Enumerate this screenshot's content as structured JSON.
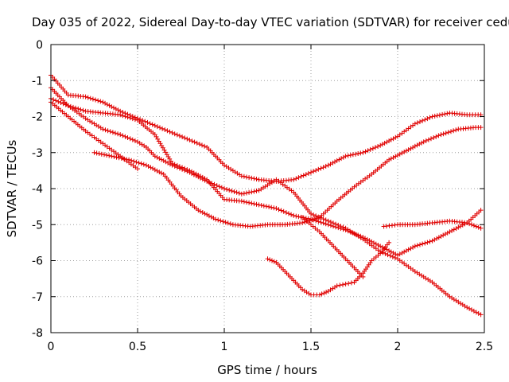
{
  "chart_data": {
    "type": "scatter",
    "title": "Day 035 of 2022, Sidereal Day-to-day VTEC variation (SDTVAR) for receiver cedu",
    "xlabel": "GPS time / hours",
    "ylabel": "SDTVAR / TECUs",
    "xlim": [
      0,
      2.5
    ],
    "ylim": [
      -8,
      0
    ],
    "xticks": [
      0,
      0.5,
      1,
      1.5,
      2,
      2.5
    ],
    "xtick_labels": [
      "0",
      "0.5",
      "1",
      "1.5",
      "2",
      "2.5"
    ],
    "yticks": [
      0,
      -1,
      -2,
      -3,
      -4,
      -5,
      -6,
      -7,
      -8
    ],
    "ytick_labels": [
      "0",
      "-1",
      "-2",
      "-3",
      "-4",
      "-5",
      "-6",
      "-7",
      "-8"
    ],
    "grid": true,
    "marker": "+",
    "marker_color": "#e00000",
    "series": [
      {
        "name": "track-1",
        "x": [
          0,
          0.1,
          0.2,
          0.3,
          0.4,
          0.5,
          0.6,
          0.7,
          0.8,
          0.9,
          1.0,
          1.1,
          1.2,
          1.3,
          1.4,
          1.5,
          1.6,
          1.7,
          1.8,
          1.9,
          2.0,
          2.1,
          2.2,
          2.3,
          2.4,
          2.48
        ],
        "y": [
          -0.85,
          -1.4,
          -1.45,
          -1.6,
          -1.85,
          -2.05,
          -2.25,
          -2.45,
          -2.65,
          -2.85,
          -3.35,
          -3.65,
          -3.75,
          -3.8,
          -3.75,
          -3.55,
          -3.35,
          -3.1,
          -3.0,
          -2.8,
          -2.55,
          -2.2,
          -2.0,
          -1.9,
          -1.95,
          -1.95
        ]
      },
      {
        "name": "track-2",
        "x": [
          0,
          0.1,
          0.2,
          0.3,
          0.4,
          0.5,
          0.55
        ],
        "y": [
          -1.2,
          -1.7,
          -2.05,
          -2.35,
          -2.5,
          -2.7,
          -2.85
        ]
      },
      {
        "name": "track-3",
        "x": [
          0.55,
          0.6,
          0.7,
          0.8,
          0.9,
          1.0,
          1.1,
          1.2,
          1.3,
          1.4,
          1.5,
          1.6,
          1.7,
          1.8,
          1.9,
          2.0,
          2.1,
          2.2,
          2.3,
          2.4,
          2.48
        ],
        "y": [
          -2.85,
          -3.1,
          -3.35,
          -3.55,
          -3.8,
          -4.0,
          -4.15,
          -4.05,
          -3.75,
          -4.1,
          -4.7,
          -4.9,
          -5.1,
          -5.4,
          -5.75,
          -5.95,
          -6.3,
          -6.6,
          -7.0,
          -7.3,
          -7.5
        ]
      },
      {
        "name": "track-4",
        "x": [
          0,
          0.1,
          0.2,
          0.3,
          0.4,
          0.5,
          0.6,
          0.7,
          0.8,
          0.9,
          1.0,
          1.1,
          1.2,
          1.3,
          1.4,
          1.5,
          1.6,
          1.7,
          1.8,
          1.9,
          2.0,
          2.1,
          2.2,
          2.3,
          2.4,
          2.48
        ],
        "y": [
          -1.5,
          -1.7,
          -1.85,
          -1.9,
          -1.95,
          -2.1,
          -2.5,
          -3.3,
          -3.5,
          -3.75,
          -4.3,
          -4.35,
          -4.45,
          -4.55,
          -4.75,
          -4.85,
          -5.0,
          -5.15,
          -5.35,
          -5.6,
          -5.85,
          -5.6,
          -5.45,
          -5.2,
          -4.95,
          -4.6
        ]
      },
      {
        "name": "track-5",
        "x": [
          0,
          0.1,
          0.2,
          0.3,
          0.4,
          0.5
        ],
        "y": [
          -1.6,
          -2.0,
          -2.4,
          -2.75,
          -3.1,
          -3.45
        ]
      },
      {
        "name": "track-6",
        "x": [
          0.25,
          0.35,
          0.45,
          0.55,
          0.65,
          0.75,
          0.85,
          0.95,
          1.05,
          1.15,
          1.25,
          1.35,
          1.45,
          1.55,
          1.65,
          1.75,
          1.85,
          1.95,
          2.05,
          2.15,
          2.25,
          2.35,
          2.45,
          2.48
        ],
        "y": [
          -3.0,
          -3.1,
          -3.2,
          -3.35,
          -3.6,
          -4.2,
          -4.6,
          -4.85,
          -5.0,
          -5.05,
          -5.0,
          -5.0,
          -4.95,
          -4.8,
          -4.35,
          -3.95,
          -3.6,
          -3.2,
          -2.95,
          -2.7,
          -2.5,
          -2.35,
          -2.3,
          -2.3
        ]
      },
      {
        "name": "track-7",
        "x": [
          1.25,
          1.3,
          1.35,
          1.4,
          1.45,
          1.5,
          1.55,
          1.6,
          1.65,
          1.7,
          1.75,
          1.8,
          1.85,
          1.9,
          1.95
        ],
        "y": [
          -5.95,
          -6.05,
          -6.3,
          -6.55,
          -6.8,
          -6.95,
          -6.95,
          -6.85,
          -6.7,
          -6.65,
          -6.6,
          -6.35,
          -6.0,
          -5.8,
          -5.5
        ]
      },
      {
        "name": "track-8",
        "x": [
          1.45,
          1.5,
          1.55,
          1.6,
          1.65,
          1.7,
          1.75,
          1.8
        ],
        "y": [
          -4.8,
          -5.0,
          -5.2,
          -5.45,
          -5.7,
          -5.95,
          -6.2,
          -6.45
        ]
      },
      {
        "name": "track-9",
        "x": [
          1.92,
          2.0,
          2.1,
          2.2,
          2.3,
          2.4,
          2.48
        ],
        "y": [
          -5.05,
          -5.0,
          -5.0,
          -4.95,
          -4.9,
          -4.95,
          -5.1
        ]
      }
    ]
  }
}
